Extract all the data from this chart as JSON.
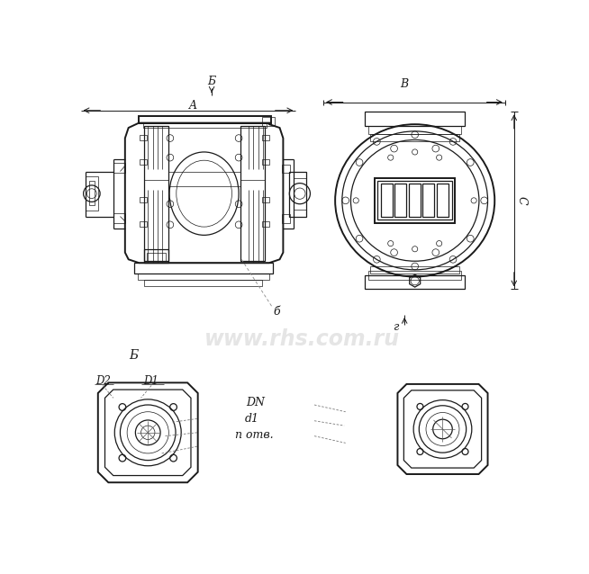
{
  "bg_color": "#ffffff",
  "line_color": "#1a1a1a",
  "gray_fill": "#e8e8e8",
  "light_fill": "#f0f0f0",
  "watermark": "www.rhs.com.ru",
  "watermark_color": "#cccccc",
  "watermark_alpha": 0.5,
  "label_A": "A",
  "label_Б_top": "Б",
  "label_B_right": "B",
  "label_C": "C",
  "label_б_small": "б",
  "label_Б_bottom": "Б",
  "label_г": "г",
  "label_D2": "D2",
  "label_D1": "D1",
  "label_DN": "DN",
  "label_d1": "d1",
  "label_n": "n отв.",
  "lw_main": 0.9,
  "lw_thick": 1.4,
  "lw_thin": 0.5,
  "lw_dim": 0.7
}
